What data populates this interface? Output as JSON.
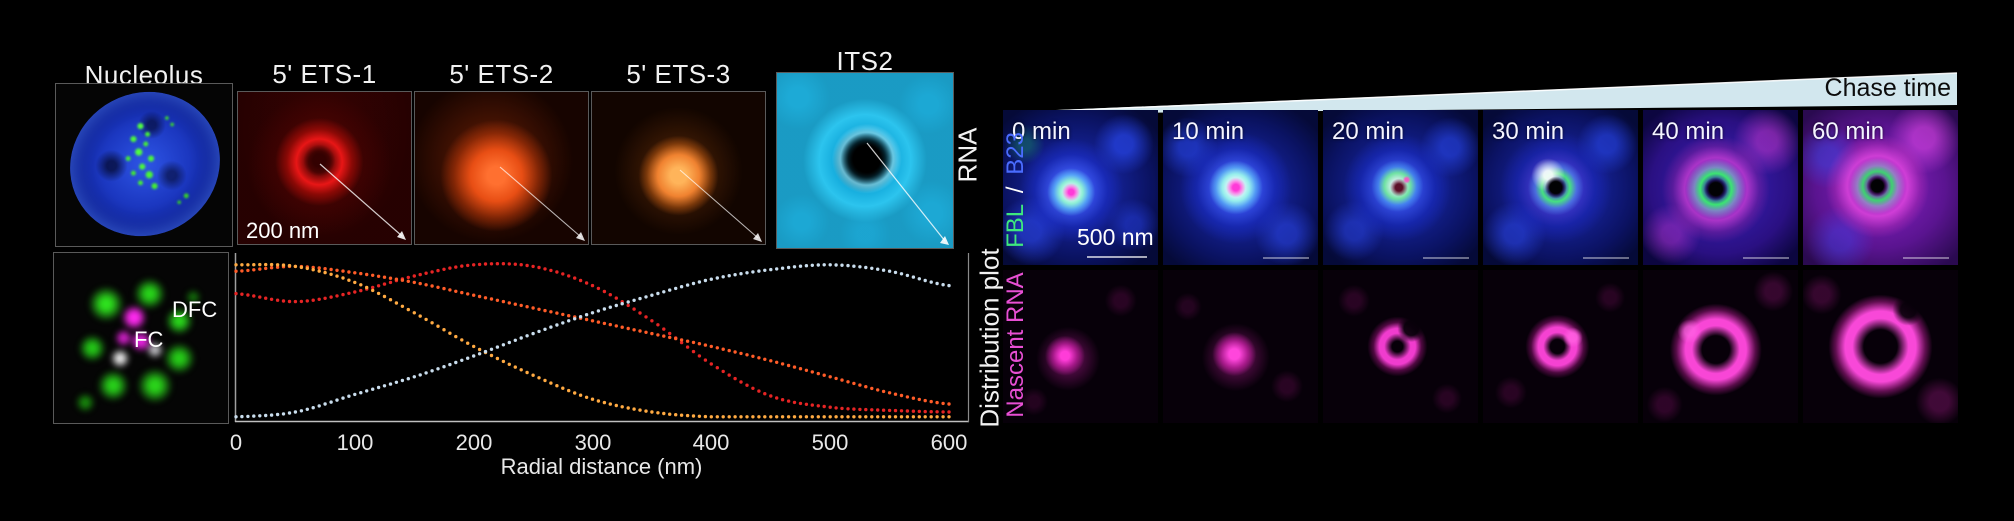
{
  "figure": {
    "left": {
      "titles": [
        "Nucleolus",
        "5' ETS-1",
        "5' ETS-2",
        "5' ETS-3",
        "ITS2"
      ],
      "rna_axis_label": "RNA",
      "distribution_axis_label": "Distribution plot",
      "scale_bar_label": "200 nm",
      "dfc_label": "DFC",
      "fc_label": "FC"
    },
    "right": {
      "chase_label": "Chase time",
      "time_labels": [
        "0 min",
        "10 min",
        "20 min",
        "30 min",
        "40 min",
        "60 min"
      ],
      "row1_label": {
        "fbl": "FBL",
        "separator": "/",
        "b23": "B23"
      },
      "row2_label": "Nascent RNA",
      "scale_bar_label": "500 nm"
    },
    "colors": {
      "background": "#000000",
      "wedge_fill": "#d2e7ee",
      "chase_text": "#0c0c0c",
      "fbl_green": "#3ee87e",
      "b23_blue": "#4a6cff",
      "nascent_magenta": "#e84fd4",
      "panel_label_text": "#f2f2f2"
    }
  },
  "chart_data": {
    "type": "scatter",
    "title": "Distribution plot",
    "xlabel": "Radial distance (nm)",
    "ylabel": "",
    "xlim": [
      0,
      600
    ],
    "ylim": [
      0,
      1
    ],
    "x_ticks": [
      0,
      100,
      200,
      300,
      400,
      500,
      600
    ],
    "grid": false,
    "marker_style": "dotted-curve",
    "x": [
      0,
      50,
      100,
      150,
      200,
      250,
      300,
      350,
      400,
      450,
      500,
      550,
      600
    ],
    "series": [
      {
        "name": "5' ETS-1",
        "color": "#e62424",
        "values": [
          0.79,
          0.74,
          0.8,
          0.9,
          0.97,
          0.96,
          0.84,
          0.62,
          0.35,
          0.15,
          0.08,
          0.06,
          0.05
        ]
      },
      {
        "name": "5' ETS-2",
        "color": "#ff5c28",
        "values": [
          0.93,
          0.96,
          0.92,
          0.86,
          0.78,
          0.7,
          0.62,
          0.54,
          0.46,
          0.37,
          0.27,
          0.17,
          0.1
        ]
      },
      {
        "name": "5' ETS-3",
        "color": "#ffaa42",
        "values": [
          0.97,
          0.96,
          0.86,
          0.67,
          0.46,
          0.28,
          0.13,
          0.05,
          0.02,
          0.02,
          0.02,
          0.02,
          0.02
        ]
      },
      {
        "name": "ITS2",
        "color": "#c9dded",
        "values": [
          0.02,
          0.05,
          0.16,
          0.27,
          0.4,
          0.54,
          0.67,
          0.78,
          0.88,
          0.94,
          0.97,
          0.93,
          0.84
        ]
      }
    ]
  }
}
